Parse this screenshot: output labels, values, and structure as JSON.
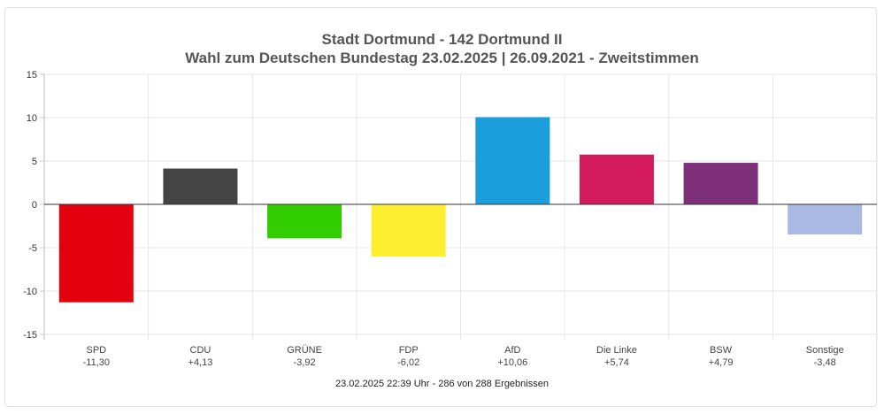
{
  "header": {
    "title_line1": "Stadt Dortmund - 142 Dortmund II",
    "title_line2": "Wahl zum Deutschen Bundestag 23.02.2025  | 26.09.2021 - Zweitstimmen"
  },
  "footer": {
    "status": "23.02.2025 22:39 Uhr - 286 von 288 Ergebnissen"
  },
  "chart_data": {
    "type": "bar",
    "title": "Stadt Dortmund - 142 Dortmund II",
    "subtitle": "Wahl zum Deutschen Bundestag 23.02.2025  | 26.09.2021 - Zweitstimmen",
    "xlabel": "",
    "ylabel": "",
    "ylim": [
      -15,
      15
    ],
    "yticks": [
      15,
      10,
      5,
      0,
      -5,
      -10,
      -15
    ],
    "grid": true,
    "legend": "none",
    "categories": [
      "SPD",
      "CDU",
      "GRÜNE",
      "FDP",
      "AfD",
      "Die Linke",
      "BSW",
      "Sonstige"
    ],
    "values": [
      -11.3,
      4.13,
      -3.92,
      -6.02,
      10.06,
      5.74,
      4.79,
      -3.48
    ],
    "value_labels": [
      "-11,30",
      "+4,13",
      "-3,92",
      "-6,02",
      "+10,06",
      "+5,74",
      "+4,79",
      "-3,48"
    ],
    "colors": [
      "#e3000f",
      "#444444",
      "#32cd00",
      "#fdee30",
      "#1a9fdc",
      "#d31b5c",
      "#7e2f7a",
      "#a9b9e4"
    ]
  }
}
